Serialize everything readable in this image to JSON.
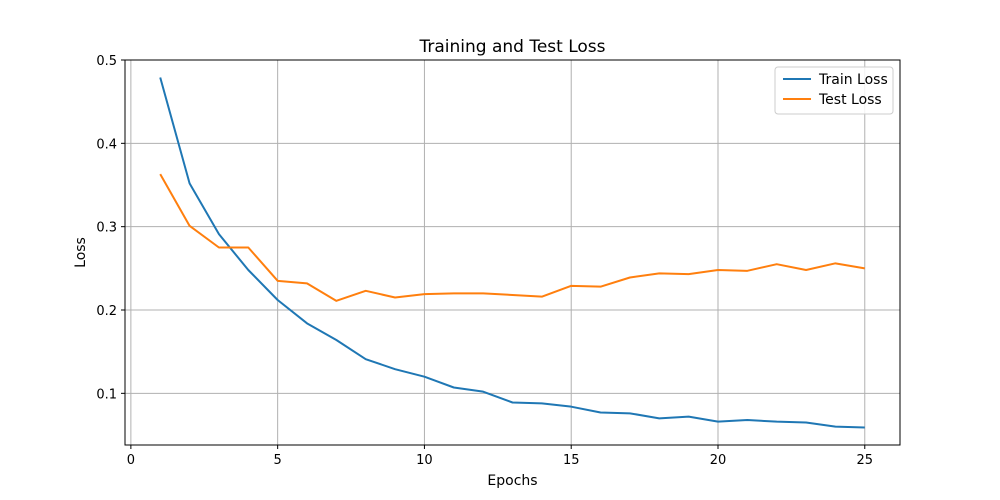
{
  "chart_data": {
    "type": "line",
    "title": "Training and Test Loss",
    "xlabel": "Epochs",
    "ylabel": "Loss",
    "xlim": [
      -0.2,
      26.2
    ],
    "ylim": [
      0.038,
      0.5
    ],
    "xticks": [
      0,
      5,
      10,
      15,
      20,
      25
    ],
    "yticks": [
      0.1,
      0.2,
      0.3,
      0.4,
      0.5
    ],
    "grid": true,
    "legend_position": "top-right",
    "x": [
      1,
      2,
      3,
      4,
      5,
      6,
      7,
      8,
      9,
      10,
      11,
      12,
      13,
      14,
      15,
      16,
      17,
      18,
      19,
      20,
      21,
      22,
      23,
      24,
      25
    ],
    "series": [
      {
        "name": "Train Loss",
        "color": "#1f77b4",
        "values": [
          0.479,
          0.352,
          0.291,
          0.248,
          0.212,
          0.184,
          0.164,
          0.141,
          0.129,
          0.12,
          0.107,
          0.102,
          0.089,
          0.088,
          0.084,
          0.077,
          0.076,
          0.07,
          0.072,
          0.066,
          0.068,
          0.066,
          0.065,
          0.06,
          0.059
        ]
      },
      {
        "name": "Test Loss",
        "color": "#ff7f0e",
        "values": [
          0.363,
          0.301,
          0.275,
          0.275,
          0.235,
          0.232,
          0.211,
          0.223,
          0.215,
          0.219,
          0.22,
          0.22,
          0.218,
          0.216,
          0.229,
          0.228,
          0.239,
          0.244,
          0.243,
          0.248,
          0.247,
          0.255,
          0.248,
          0.256,
          0.25
        ]
      }
    ]
  }
}
